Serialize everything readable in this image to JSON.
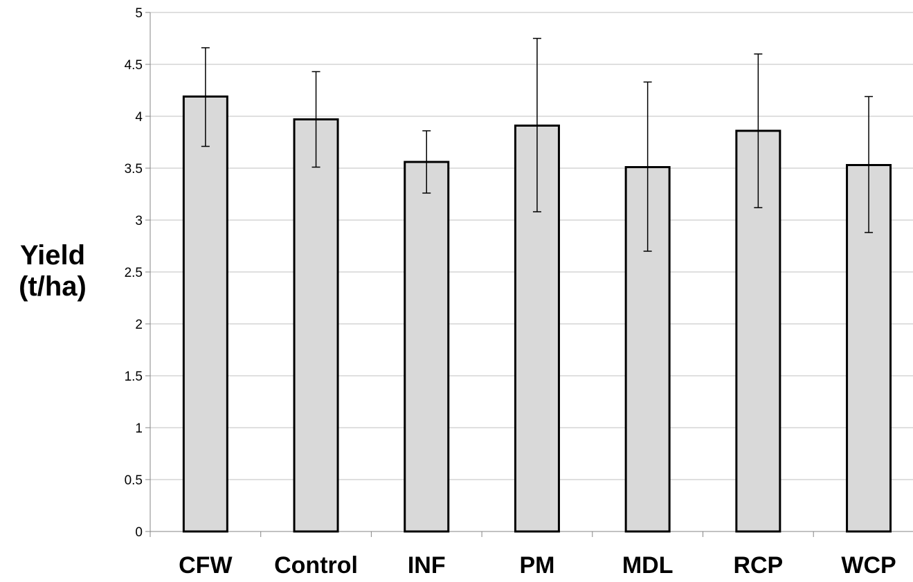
{
  "chart_data": {
    "type": "bar",
    "categories": [
      "CFW",
      "Control",
      "INF",
      "PM",
      "MDL",
      "RCP",
      "WCP"
    ],
    "values": [
      4.19,
      3.97,
      3.56,
      3.91,
      3.51,
      3.86,
      3.53
    ],
    "error_low": [
      3.71,
      3.51,
      3.26,
      3.08,
      2.7,
      3.12,
      2.88
    ],
    "error_high": [
      4.66,
      4.43,
      3.86,
      4.75,
      4.33,
      4.6,
      4.19
    ],
    "ylabel_line1": "Yield",
    "ylabel_line2": "(t/ha)",
    "ylim": [
      0,
      5
    ],
    "yticks": [
      0,
      0.5,
      1,
      1.5,
      2,
      2.5,
      3,
      3.5,
      4,
      4.5,
      5
    ],
    "ytick_labels": [
      "0",
      "0.5",
      "1",
      "1.5",
      "2",
      "2.5",
      "3",
      "3.5",
      "4",
      "4.5",
      "5"
    ],
    "grid": true,
    "colors": {
      "bar_fill": "#d9d9d9",
      "bar_stroke": "#000000",
      "grid": "#bfbfbf",
      "axis": "#868686"
    }
  }
}
